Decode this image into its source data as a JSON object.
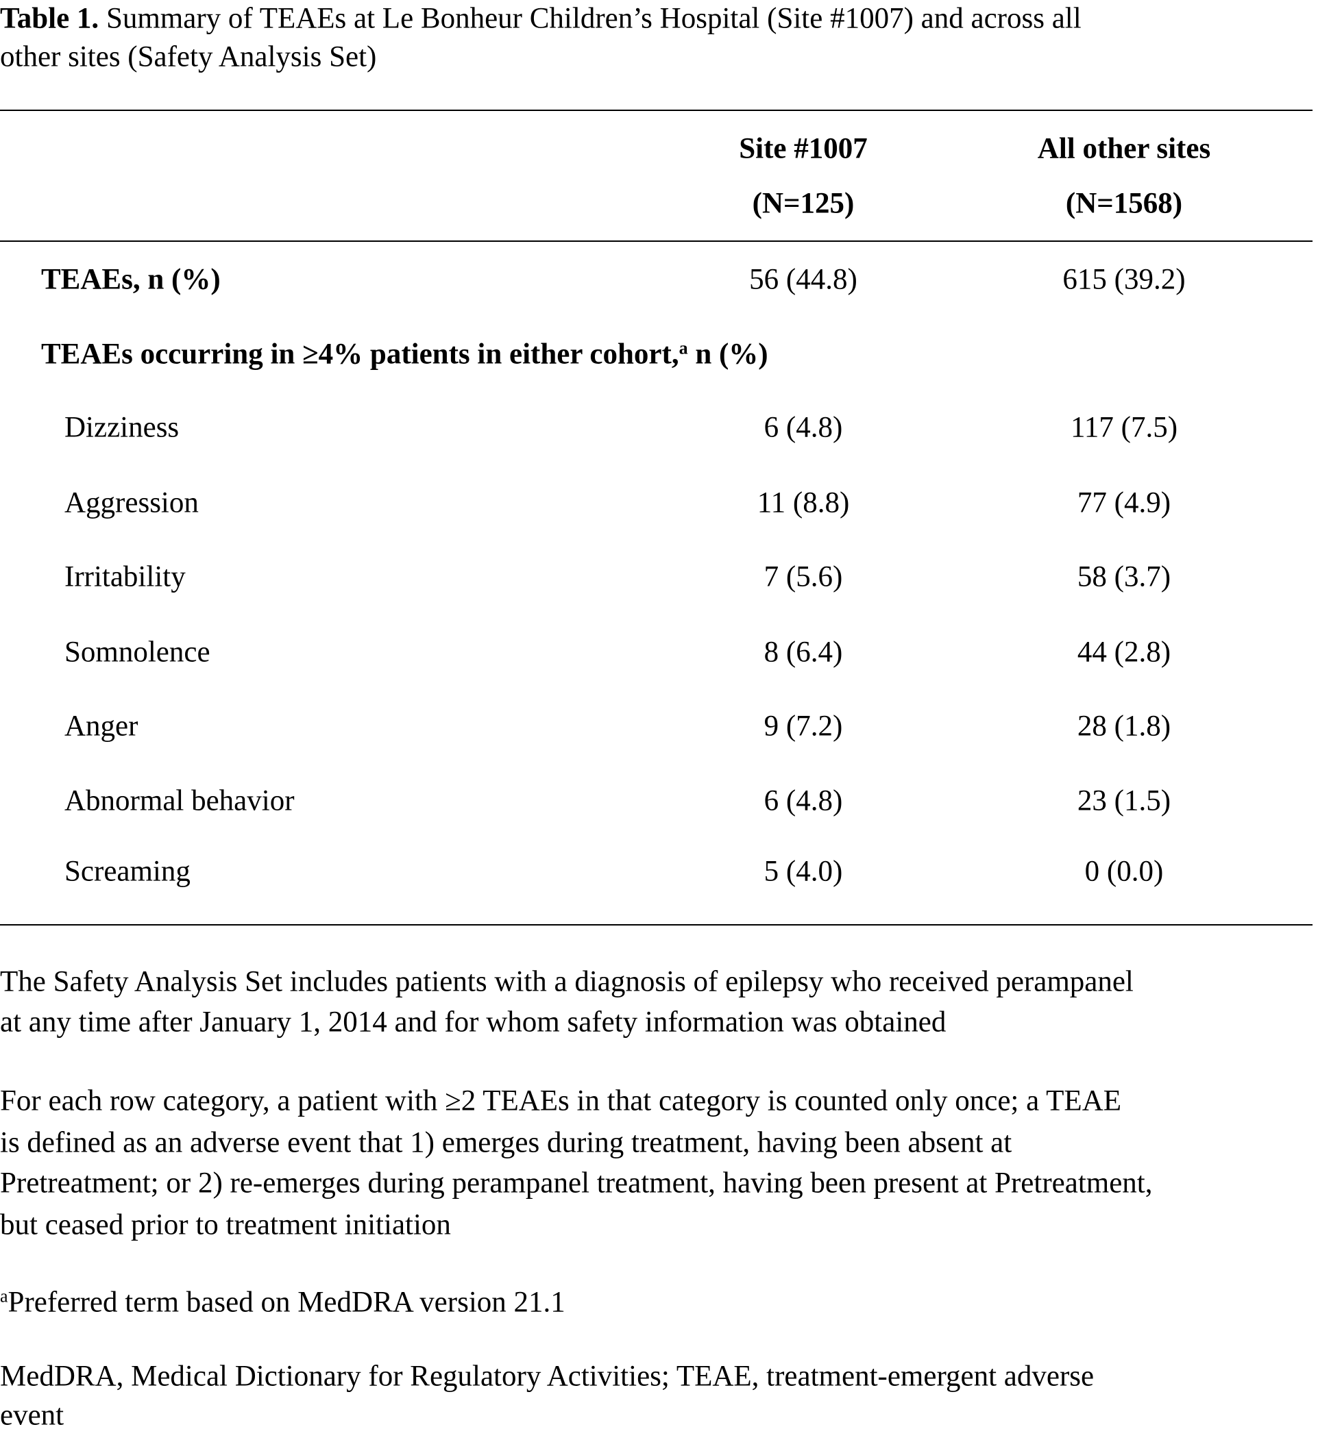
{
  "table": {
    "label": "Table 1.",
    "title_lines": [
      " Summary of TEAEs at Le Bonheur Children’s Hospital (Site #1007) and across all",
      "other sites (Safety Analysis Set)"
    ],
    "columns": [
      {
        "name": "Site #1007",
        "n": "(N=125)"
      },
      {
        "name": "All other sites",
        "n": "(N=1568)"
      }
    ],
    "summary_row": [
      "TEAEs, n (%)",
      "56 (44.8)",
      "615 (39.2)"
    ],
    "section": {
      "text": "TEAEs occurring in ≥4% patients in either cohort,",
      "sup": "a",
      "tail": " n (%)"
    },
    "rows": [
      [
        "Dizziness",
        "6 (4.8)",
        "117 (7.5)"
      ],
      [
        "Aggression",
        "11 (8.8)",
        "77 (4.9)"
      ],
      [
        "Irritability",
        "7 (5.6)",
        "58 (3.7)"
      ],
      [
        "Somnolence",
        "8 (6.4)",
        "44 (2.8)"
      ],
      [
        "Anger",
        "9 (7.2)",
        "28 (1.8)"
      ],
      [
        "Abnormal behavior",
        "6 (4.8)",
        "23 (1.5)"
      ],
      [
        "Screaming",
        "5 (4.0)",
        "0 (0.0)"
      ]
    ]
  },
  "footnotes": {
    "safety_set": [
      "The Safety Analysis Set includes patients with a diagnosis of epilepsy who received perampanel",
      "at any time after January 1, 2014 and for whom safety information was obtained"
    ],
    "counting": [
      "For each row category, a patient with ≥2 TEAEs in that category is counted only once; a TEAE",
      "is defined as an adverse event that 1) emerges during treatment, having been absent at",
      "Pretreatment; or 2) re-emerges during perampanel treatment, having been present at Pretreatment,",
      "but ceased prior to treatment initiation"
    ],
    "meddra_sup": "a",
    "meddra_term": "Preferred term based on MedDRA version 21.1",
    "abbreviations": [
      "MedDRA, Medical Dictionary for Regulatory Activities; TEAE, treatment-emergent adverse",
      "event"
    ]
  }
}
